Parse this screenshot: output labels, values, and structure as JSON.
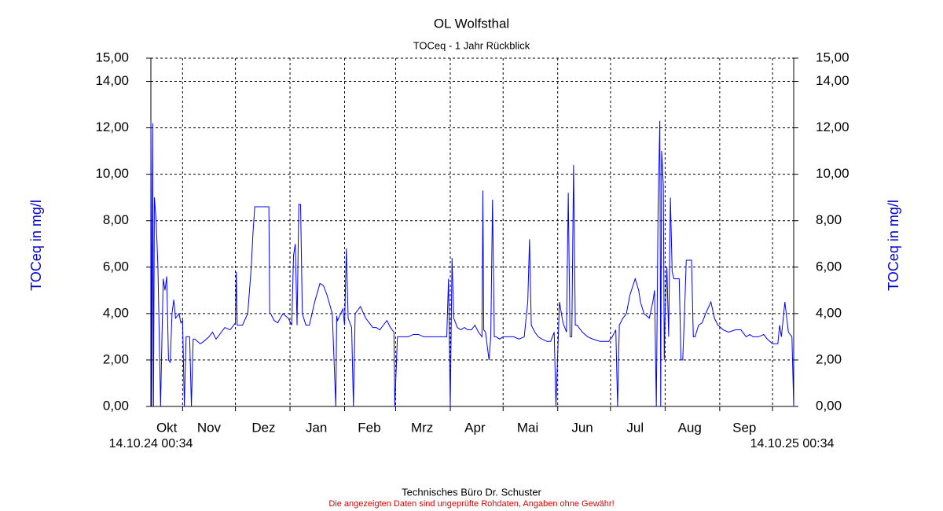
{
  "chart_data": {
    "type": "line",
    "title": "OL Wolfsthal",
    "subtitle": "TOCeq - 1 Jahr Rückblick",
    "ylabel": "TOCeq in mg/l",
    "y2label": "TOCeq in mg/l",
    "color": "#0000ff",
    "grid": true,
    "xlim": [
      0,
      365
    ],
    "x_start_label": "14.10.24 00:34",
    "x_end_label": "14.10.25 00:34",
    "xticks": [
      {
        "value": 9,
        "label": "Okt"
      },
      {
        "value": 33,
        "label": "Nov"
      },
      {
        "value": 64,
        "label": "Dez"
      },
      {
        "value": 94,
        "label": "Jan"
      },
      {
        "value": 124,
        "label": "Feb"
      },
      {
        "value": 154,
        "label": "Mrz"
      },
      {
        "value": 184,
        "label": "Apr"
      },
      {
        "value": 214,
        "label": "Mai"
      },
      {
        "value": 245,
        "label": "Jun"
      },
      {
        "value": 275,
        "label": "Jul"
      },
      {
        "value": 306,
        "label": "Aug"
      },
      {
        "value": 337,
        "label": "Sep"
      }
    ],
    "x_gridlines": [
      18,
      48,
      79,
      110,
      139,
      170,
      200,
      231,
      261,
      292,
      323,
      353
    ],
    "ylim": [
      0,
      15
    ],
    "yticks": [
      {
        "value": 0,
        "label": "0,00"
      },
      {
        "value": 2,
        "label": "2,00"
      },
      {
        "value": 4,
        "label": "4,00"
      },
      {
        "value": 6,
        "label": "6,00"
      },
      {
        "value": 8,
        "label": "8,00"
      },
      {
        "value": 10,
        "label": "10,00"
      },
      {
        "value": 12,
        "label": "12,00"
      },
      {
        "value": 14,
        "label": "14,00"
      },
      {
        "value": 15,
        "label": "15,00"
      }
    ],
    "y2lim": [
      0,
      15
    ],
    "y2ticks": [
      {
        "value": 0,
        "label": "0,00"
      },
      {
        "value": 2,
        "label": "2,00"
      },
      {
        "value": 4,
        "label": "4,00"
      },
      {
        "value": 6,
        "label": "6,00"
      },
      {
        "value": 8,
        "label": "8,00"
      },
      {
        "value": 10,
        "label": "10,00"
      },
      {
        "value": 12,
        "label": "12,00"
      },
      {
        "value": 14,
        "label": "14,00"
      },
      {
        "value": 15,
        "label": "15,00"
      }
    ],
    "x": [
      0,
      0.5,
      1,
      1.5,
      2,
      3,
      4,
      5,
      5.5,
      6,
      7,
      8,
      9,
      10,
      11,
      12,
      13,
      14,
      16,
      17,
      18,
      19,
      20,
      22,
      23,
      24,
      25,
      28,
      30,
      33,
      35,
      37,
      38,
      40,
      42,
      45,
      48,
      48.5,
      49,
      52,
      55,
      57,
      58,
      59,
      63,
      67,
      67.5,
      68,
      70,
      72,
      75,
      78,
      80,
      81,
      82,
      83,
      84,
      85,
      86,
      88,
      90,
      93,
      96,
      98,
      100,
      103,
      105,
      105.5,
      106,
      109,
      110,
      111,
      112,
      114,
      115,
      116,
      119,
      122,
      126,
      128,
      130,
      132,
      134,
      136,
      138,
      138.5,
      140,
      143,
      146,
      149,
      152,
      155,
      158,
      161,
      164,
      168,
      169,
      170,
      171,
      172,
      174,
      176,
      178,
      180,
      182,
      184,
      186,
      188,
      188.5,
      189,
      190,
      192,
      193,
      194,
      195,
      196,
      198,
      200,
      203,
      206,
      209,
      212,
      214,
      215,
      216,
      218,
      220,
      222,
      225,
      227,
      229,
      230,
      232,
      234,
      236,
      237,
      238,
      239,
      240,
      241,
      242,
      245,
      248,
      251,
      255,
      258,
      260,
      262,
      264,
      265,
      266,
      268,
      270,
      272,
      275,
      277,
      278,
      280,
      283,
      285,
      286,
      287,
      288,
      289,
      289.5,
      290,
      291,
      291.5,
      292,
      293,
      294,
      295,
      296,
      297,
      299,
      300,
      301,
      302,
      303,
      304,
      306,
      307,
      308,
      309,
      311,
      313,
      315,
      318,
      320,
      322,
      325,
      328,
      332,
      335,
      338,
      340,
      342,
      345,
      348,
      350,
      353,
      356,
      357,
      358,
      360,
      362,
      364,
      365
    ],
    "values": [
      12.3,
      0,
      12.2,
      0,
      9,
      8,
      6,
      2,
      0,
      1.9,
      5.5,
      5,
      5.6,
      2,
      1.9,
      4,
      4.6,
      3.8,
      4,
      3.6,
      3.7,
      0,
      3,
      3,
      0,
      2.9,
      2.9,
      2.7,
      2.8,
      3.0,
      3.2,
      2.9,
      3,
      3.2,
      3.4,
      3.3,
      3.6,
      5.8,
      3.5,
      3.5,
      4,
      6,
      7.5,
      8.6,
      8.6,
      8.6,
      4,
      4,
      3.7,
      3.6,
      4,
      3.8,
      3.5,
      6.5,
      7,
      3.5,
      8.7,
      8.7,
      4,
      3.5,
      3.5,
      4.5,
      5.3,
      5.2,
      4.8,
      4,
      0,
      3.9,
      3.7,
      4.2,
      3.5,
      6.8,
      3.8,
      3.4,
      0,
      4,
      4.3,
      3.8,
      3.4,
      3.4,
      3.3,
      3.5,
      3.7,
      3.4,
      3.2,
      0,
      3.0,
      3,
      3.0,
      3.1,
      3.1,
      3.0,
      3.0,
      3,
      3.0,
      3.0,
      5.5,
      0,
      6.4,
      3.8,
      3.4,
      3.3,
      3.4,
      3.3,
      3.3,
      3.5,
      3.2,
      3,
      9.3,
      3.3,
      3.2,
      2,
      3,
      8.9,
      3,
      3,
      2.9,
      3,
      3,
      3,
      2.9,
      3,
      4.5,
      7.2,
      3.5,
      3.2,
      3,
      2.9,
      2.8,
      2.8,
      3.2,
      0,
      4.5,
      3.6,
      3.2,
      9.2,
      3,
      3,
      10.4,
      3.5,
      3.5,
      3.2,
      3,
      2.9,
      2.8,
      2.8,
      2.8,
      3,
      3.3,
      0,
      3.5,
      3.8,
      4,
      4.8,
      5.5,
      5,
      4.5,
      4,
      3.8,
      4.5,
      5,
      0,
      8.5,
      12.3,
      0,
      11,
      9.5,
      2,
      4,
      6,
      3,
      9,
      5.8,
      5.5,
      5.5,
      5.5,
      2,
      2,
      4,
      6.3,
      6.3,
      6.3,
      3,
      3,
      3.5,
      3.6,
      4,
      4.5,
      3.8,
      3.5,
      3.3,
      3.2,
      3.3,
      3.3,
      3,
      3.1,
      3,
      3,
      3.1,
      2.9,
      2.7,
      2.7,
      3.5,
      3,
      4.5,
      3.2,
      3,
      0
    ],
    "footer": "Technisches Büro Dr. Schuster",
    "disclaimer": "Die angezeigten Daten sind ungeprüfte Rohdaten, Angaben ohne Gewähr!"
  }
}
